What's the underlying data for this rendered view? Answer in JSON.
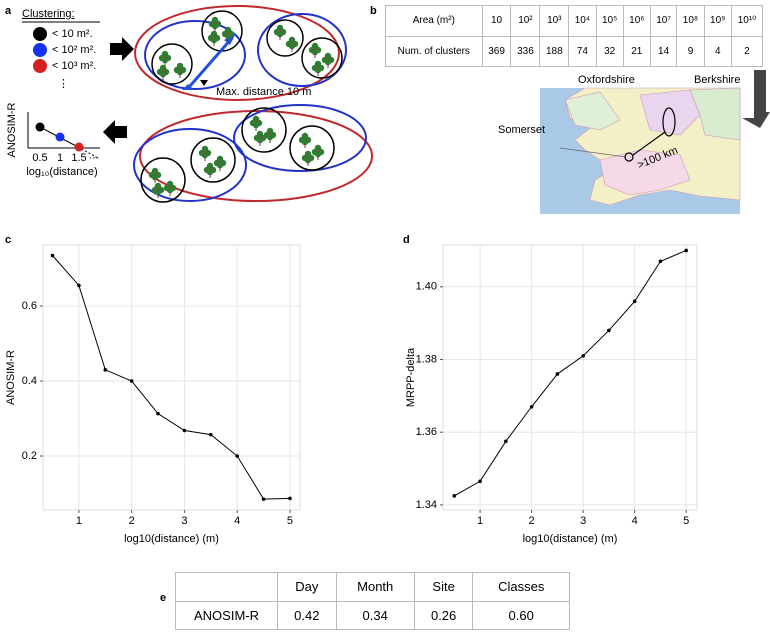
{
  "panel_labels": [
    "a",
    "b",
    "c",
    "d",
    "e"
  ],
  "diagram": {
    "legend_title": "Clustering:",
    "legend_items": [
      "< 10 m².",
      "< 10² m².",
      "< 10³ m²."
    ],
    "legend_more": "⋮",
    "annotation": "Max. distance 10 m",
    "mini_plot": {
      "y_label": "ANOSIM-R",
      "x_ticks": [
        "0.5",
        "1",
        "1.5",
        "···"
      ],
      "x_label": "log₁₀(distance)"
    }
  },
  "table_b": {
    "header": [
      "Area (m²)",
      "10",
      "10²",
      "10³",
      "10⁴",
      "10⁵",
      "10⁶",
      "10⁷",
      "10⁸",
      "10⁹",
      "10¹⁰"
    ],
    "row_label": "Num. of clusters",
    "values": [
      369,
      336,
      188,
      74,
      32,
      21,
      14,
      9,
      4,
      2
    ]
  },
  "map": {
    "labels": [
      "Oxfordshire",
      "Berkshire",
      "Somerset",
      ">100 km"
    ]
  },
  "table_e": {
    "header": [
      "Day",
      "Month",
      "Site",
      "Classes"
    ],
    "row_label": "ANOSIM-R",
    "values": [
      "0.42",
      "0.34",
      "0.26",
      "0.60"
    ]
  },
  "chart_data": [
    {
      "type": "line",
      "x_label": "log10(distance) (m)",
      "y_label": "ANOSIM-R",
      "color": "#000000",
      "grid": true,
      "x": [
        0.5,
        1,
        1.5,
        2,
        2.5,
        3,
        3.5,
        4,
        4.5,
        5
      ],
      "values": [
        0.735,
        0.655,
        0.43,
        0.4,
        0.313,
        0.268,
        0.257,
        0.2,
        0.085,
        0.087
      ],
      "xlim": [
        0.32,
        5.19
      ],
      "ylim": [
        0.056,
        0.763
      ],
      "xticks": [
        1,
        2,
        3,
        4,
        5
      ],
      "yticks": [
        0.2,
        0.4,
        0.6
      ]
    },
    {
      "type": "line",
      "x_label": "log10(distance) (m)",
      "y_label": "MRPP-delta",
      "color": "#000000",
      "grid": true,
      "x": [
        0.5,
        1,
        1.5,
        2,
        2.5,
        3,
        3.5,
        4,
        4.5,
        5
      ],
      "values": [
        1.3425,
        1.3465,
        1.3575,
        1.367,
        1.376,
        1.381,
        1.388,
        1.396,
        1.407,
        1.41
      ],
      "xlim": [
        0.28,
        5.21
      ],
      "ylim": [
        1.3386,
        1.4115
      ],
      "xticks": [
        1,
        2,
        3,
        4,
        5
      ],
      "yticks": [
        1.34,
        1.36,
        1.38,
        {
          "value": 1.4,
          "label": "1.40"
        }
      ]
    }
  ]
}
